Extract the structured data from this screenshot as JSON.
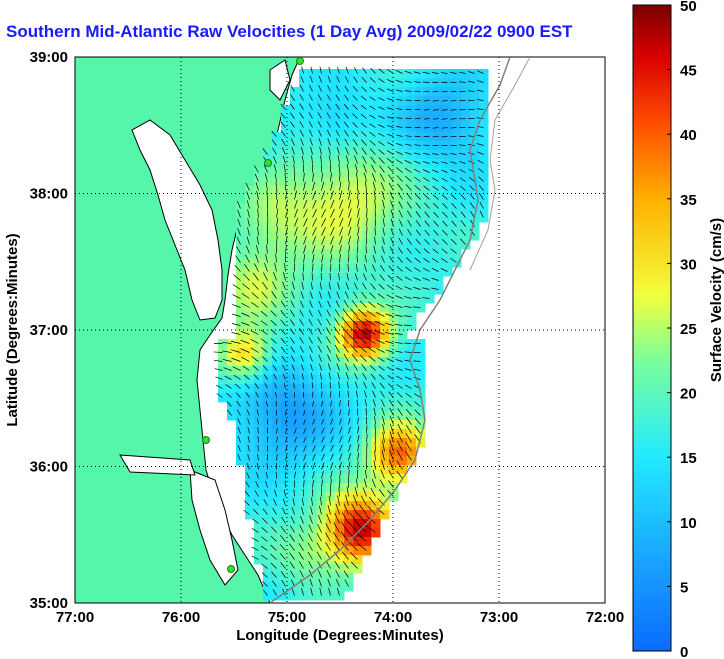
{
  "title": "Southern Mid-Atlantic Raw Velocities (1 Day Avg) 2009/02/22 0900 EST",
  "chart_data": {
    "type": "heatmap",
    "title": "Southern Mid-Atlantic Raw Velocities (1 Day Avg) 2009/02/22 0900 EST",
    "xlabel": "Longitude (Degrees:Minutes)",
    "ylabel": "Latitude (Degrees:Minutes)",
    "x_ticks": [
      "77:00",
      "76:00",
      "75:00",
      "74:00",
      "73:00",
      "72:00"
    ],
    "y_ticks": [
      "39:00",
      "38:00",
      "37:00",
      "36:00",
      "35:00"
    ],
    "xlim": [
      -77,
      -72
    ],
    "ylim": [
      35,
      39
    ],
    "grid": true,
    "colorbar": {
      "label": "Surface Velocity (cm/s)",
      "range": [
        0,
        50
      ],
      "ticks": [
        "50",
        "45",
        "40",
        "35",
        "30",
        "25",
        "20",
        "15",
        "10",
        "5",
        "0"
      ]
    },
    "land_color": "#55f5aa",
    "shoreline_color": "#000000",
    "shelf_contour_color": "#808080",
    "station_color": "#33dd33"
  }
}
